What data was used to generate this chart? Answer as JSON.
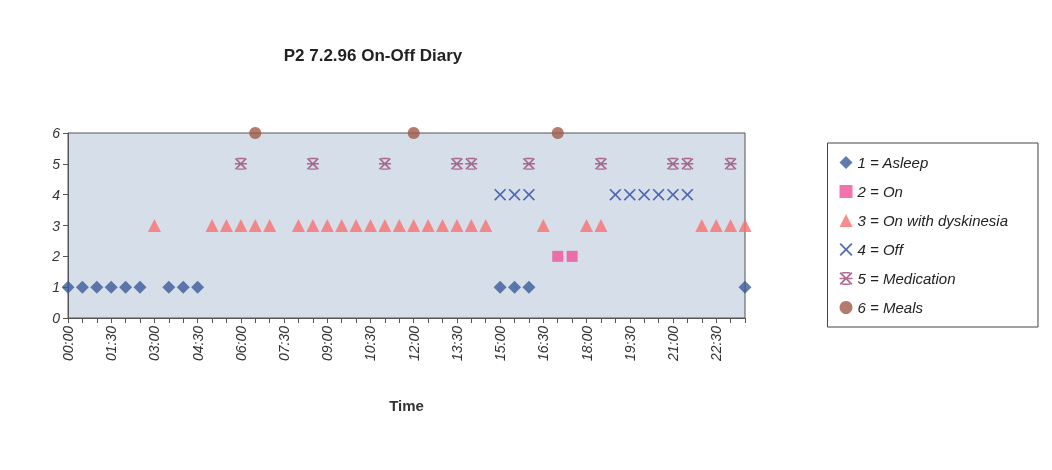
{
  "chart_data": {
    "type": "scatter",
    "title": "P2 7.2.96 On-Off Diary",
    "xlabel": "Time",
    "categories": [
      "00:00",
      null,
      null,
      "01:30",
      null,
      null,
      "03:00",
      null,
      null,
      "04:30",
      null,
      null,
      "06:00",
      null,
      null,
      "07:30",
      null,
      null,
      "09:00",
      null,
      null,
      "10:30",
      null,
      null,
      "12:00",
      null,
      null,
      "13:30",
      null,
      null,
      "15:00",
      null,
      null,
      "16:30",
      null,
      null,
      "18:00",
      null,
      null,
      "19:30",
      null,
      null,
      "21:00",
      null,
      null,
      "22:30",
      null,
      null
    ],
    "ylim": [
      0,
      6
    ],
    "yticks": [
      0,
      1,
      2,
      3,
      4,
      5,
      6
    ],
    "grid": false,
    "legend": "right",
    "series": [
      {
        "name": "1 = Asleep",
        "color": "#3b5a9a",
        "marker": "diamond",
        "values": [
          1,
          1,
          1,
          1,
          1,
          1,
          null,
          1,
          1,
          1,
          null,
          null,
          null,
          null,
          null,
          null,
          null,
          null,
          null,
          null,
          null,
          null,
          null,
          null,
          null,
          null,
          null,
          null,
          null,
          null,
          1,
          1,
          1,
          null,
          null,
          null,
          null,
          null,
          null,
          null,
          null,
          null,
          null,
          null,
          null,
          null,
          null,
          1
        ]
      },
      {
        "name": "2 = On",
        "color": "#f0509a",
        "marker": "square",
        "values": [
          null,
          null,
          null,
          null,
          null,
          null,
          null,
          null,
          null,
          null,
          null,
          null,
          null,
          null,
          null,
          null,
          null,
          null,
          null,
          null,
          null,
          null,
          null,
          null,
          null,
          null,
          null,
          null,
          null,
          null,
          null,
          null,
          null,
          null,
          2,
          2,
          null,
          null,
          null,
          null,
          null,
          null,
          null,
          null,
          null,
          null,
          null,
          null
        ]
      },
      {
        "name": "3 = On with dyskinesia",
        "color": "#f87070",
        "marker": "triangle",
        "values": [
          null,
          null,
          null,
          null,
          null,
          null,
          3,
          null,
          null,
          null,
          3,
          3,
          3,
          3,
          3,
          null,
          3,
          3,
          3,
          3,
          3,
          3,
          3,
          3,
          3,
          3,
          3,
          3,
          3,
          3,
          null,
          null,
          null,
          3,
          null,
          null,
          3,
          3,
          null,
          null,
          null,
          null,
          null,
          null,
          3,
          3,
          3,
          3
        ]
      },
      {
        "name": "4 = Off",
        "color": "#2b4aa0",
        "marker": "cross",
        "values": [
          null,
          null,
          null,
          null,
          null,
          null,
          null,
          null,
          null,
          null,
          null,
          null,
          null,
          null,
          null,
          null,
          null,
          null,
          null,
          null,
          null,
          null,
          null,
          null,
          null,
          null,
          null,
          null,
          null,
          null,
          4,
          4,
          4,
          null,
          null,
          null,
          null,
          null,
          4,
          4,
          4,
          4,
          4,
          4,
          null,
          null,
          null,
          null
        ]
      },
      {
        "name": "5 = Medication",
        "color": "#9a4a7a",
        "marker": "star",
        "values": [
          null,
          null,
          null,
          null,
          null,
          null,
          null,
          null,
          null,
          null,
          null,
          null,
          5,
          null,
          null,
          null,
          null,
          5,
          null,
          null,
          null,
          null,
          5,
          null,
          null,
          null,
          null,
          5,
          5,
          null,
          null,
          null,
          5,
          null,
          null,
          null,
          null,
          5,
          null,
          null,
          null,
          null,
          5,
          5,
          null,
          null,
          5,
          null
        ]
      },
      {
        "name": "6 = Meals",
        "color": "#a05a4a",
        "marker": "circle",
        "values": [
          null,
          null,
          null,
          null,
          null,
          null,
          null,
          null,
          null,
          null,
          null,
          null,
          null,
          6,
          null,
          null,
          null,
          null,
          null,
          null,
          null,
          null,
          null,
          null,
          6,
          null,
          null,
          null,
          null,
          null,
          null,
          null,
          null,
          null,
          6,
          null,
          null,
          null,
          null,
          null,
          null,
          null,
          null,
          null,
          null,
          null,
          null,
          null
        ]
      }
    ]
  }
}
